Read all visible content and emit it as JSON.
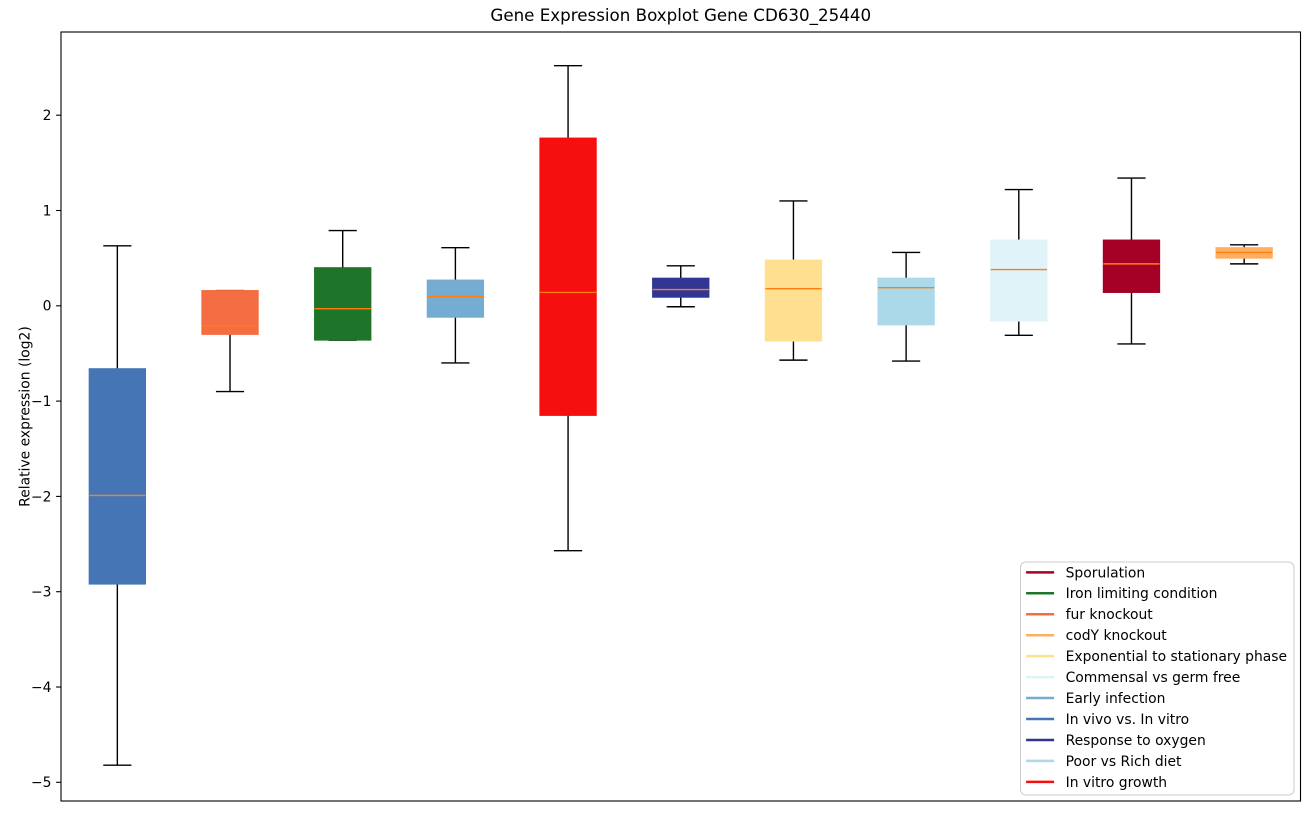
{
  "figure": {
    "title": "Gene Expression Boxplot Gene CD630_25440",
    "ylabel": "Relative expression (log2)"
  },
  "chart_data": {
    "type": "boxplot",
    "title": "Gene Expression Boxplot Gene CD630_25440",
    "xlabel": "",
    "ylabel": "Relative expression (log2)",
    "xlim": [
      0.5,
      11.5
    ],
    "ylim": [
      -5.196,
      2.873
    ],
    "yticks": [
      2,
      1,
      0,
      -1,
      -2,
      -3,
      -4,
      -5
    ],
    "xticks": [],
    "grid": false,
    "box_width": 0.5,
    "cap_width": 0.25,
    "median_color": "#ff7f0e",
    "whisker_color": "#000000",
    "boxes": [
      {
        "position": 1,
        "label": "In vivo vs. In vitro",
        "color": "#4575b4",
        "whislo": -4.82,
        "q1": -2.92,
        "med": -1.99,
        "q3": -0.66,
        "whishi": 0.63
      },
      {
        "position": 2,
        "label": "fur knockout",
        "color": "#f46d43",
        "whislo": -0.9,
        "q1": -0.3,
        "med": -0.21,
        "q3": 0.16,
        "whishi": 0.16
      },
      {
        "position": 3,
        "label": "Iron limiting condition",
        "color": "#1e7428",
        "whislo": -0.36,
        "q1": -0.36,
        "med": -0.03,
        "q3": 0.4,
        "whishi": 0.79
      },
      {
        "position": 4,
        "label": "Early infection",
        "color": "#74add1",
        "whislo": -0.6,
        "q1": -0.12,
        "med": 0.1,
        "q3": 0.27,
        "whishi": 0.61
      },
      {
        "position": 5,
        "label": "In vitro growth",
        "color": "#f50f0f",
        "whislo": -2.57,
        "q1": -1.15,
        "med": 0.14,
        "q3": 1.76,
        "whishi": 2.52
      },
      {
        "position": 6,
        "label": "Response to oxygen",
        "color": "#313695",
        "whislo": -0.01,
        "q1": 0.09,
        "med": 0.17,
        "q3": 0.29,
        "whishi": 0.42
      },
      {
        "position": 7,
        "label": "Exponential to stationary phase",
        "color": "#fee090",
        "whislo": -0.57,
        "q1": -0.37,
        "med": 0.18,
        "q3": 0.48,
        "whishi": 1.1
      },
      {
        "position": 8,
        "label": "Poor vs Rich diet",
        "color": "#abd9e9",
        "whislo": -0.58,
        "q1": -0.2,
        "med": 0.19,
        "q3": 0.29,
        "whishi": 0.56
      },
      {
        "position": 9,
        "label": "Commensal vs germ free",
        "color": "#e0f3f8",
        "whislo": -0.31,
        "q1": -0.16,
        "med": 0.38,
        "q3": 0.69,
        "whishi": 1.22
      },
      {
        "position": 10,
        "label": "Sporulation",
        "color": "#a50026",
        "whislo": -0.4,
        "q1": 0.14,
        "med": 0.44,
        "q3": 0.69,
        "whishi": 1.34
      },
      {
        "position": 11,
        "label": "codY knockout",
        "color": "#fdae61",
        "whislo": 0.44,
        "q1": 0.5,
        "med": 0.56,
        "q3": 0.61,
        "whishi": 0.64
      }
    ],
    "legend": {
      "position": "lower right",
      "entries": [
        {
          "label": "Sporulation",
          "color": "#a50026"
        },
        {
          "label": "Iron limiting condition",
          "color": "#1e7428"
        },
        {
          "label": "fur knockout",
          "color": "#f46d43"
        },
        {
          "label": "codY knockout",
          "color": "#fdae61"
        },
        {
          "label": "Exponential to stationary phase",
          "color": "#fee090"
        },
        {
          "label": "Commensal vs germ free",
          "color": "#e0f3f8"
        },
        {
          "label": "Early infection",
          "color": "#74add1"
        },
        {
          "label": "In vivo vs. In vitro",
          "color": "#4575b4"
        },
        {
          "label": "Response to oxygen",
          "color": "#313695"
        },
        {
          "label": "Poor vs Rich diet",
          "color": "#abd9e9"
        },
        {
          "label": "In vitro growth",
          "color": "#f50f0f"
        }
      ]
    }
  }
}
